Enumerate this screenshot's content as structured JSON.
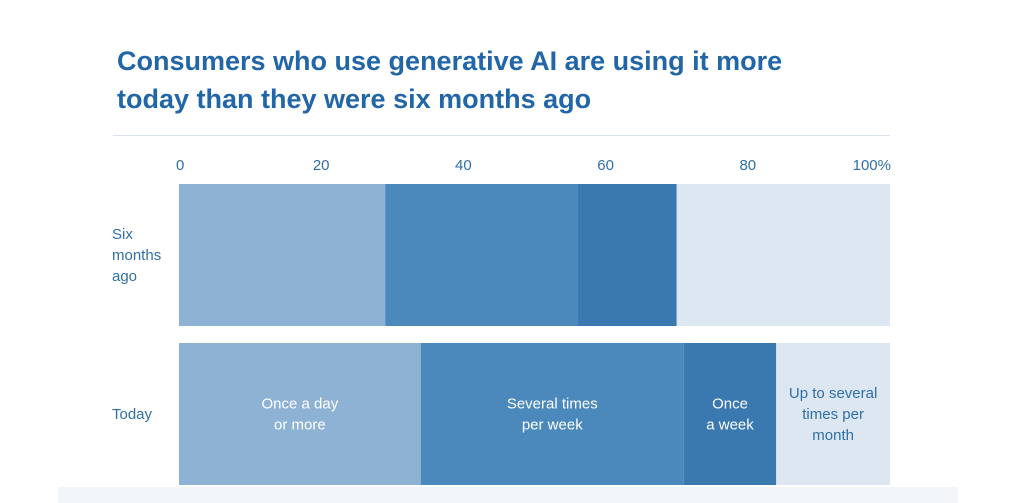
{
  "title_line1": "Consumers who use generative AI are using it more",
  "title_line2": "today than they were six months ago",
  "colors": {
    "title": "#2266a8",
    "text": "#2f6fa8",
    "segments": [
      "#8eb2d3",
      "#4b88bb",
      "#3a78b0",
      "#dce7f1"
    ]
  },
  "chart_data": {
    "type": "bar",
    "orientation": "horizontal",
    "stacked": true,
    "title": "Consumers who use generative AI are using it more today than they were six months ago",
    "xlim": [
      0,
      100
    ],
    "ticks": [
      "0",
      "20",
      "40",
      "60",
      "80",
      "100%"
    ],
    "tick_values": [
      0,
      20,
      40,
      60,
      80,
      100
    ],
    "categories": [
      [
        "Six",
        "months",
        "ago"
      ],
      [
        "Today"
      ]
    ],
    "series": [
      {
        "name": "Once a day or more",
        "label_lines": [
          "Once a day",
          "or more"
        ],
        "values": [
          29,
          34
        ]
      },
      {
        "name": "Several times per week",
        "label_lines": [
          "Several times",
          "per week"
        ],
        "values": [
          27,
          37
        ]
      },
      {
        "name": "Once a week",
        "label_lines": [
          "Once",
          "a week"
        ],
        "values": [
          14,
          13
        ]
      },
      {
        "name": "Up to several times per month",
        "label_lines": [
          "Up to several",
          "times per",
          "month"
        ],
        "values": [
          30,
          16
        ]
      }
    ],
    "label_row": 1,
    "grid": false,
    "legend": "inline"
  }
}
